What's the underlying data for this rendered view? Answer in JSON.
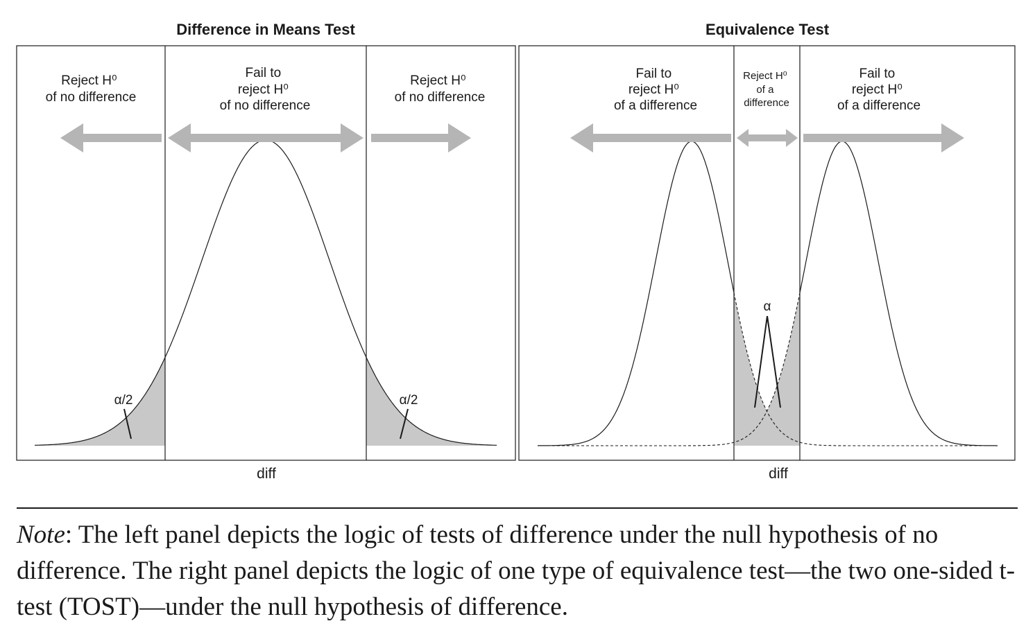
{
  "left_panel": {
    "title": "Difference in Means Test",
    "regions": [
      {
        "lines": [
          "Reject H⁰",
          "of no difference"
        ]
      },
      {
        "lines": [
          "Fail to",
          "reject H⁰",
          "of no difference"
        ]
      },
      {
        "lines": [
          "Reject H⁰",
          "of no difference"
        ]
      }
    ],
    "tail_labels": [
      "α/2",
      "α/2"
    ],
    "xlabel": "diff"
  },
  "right_panel": {
    "title": "Equivalence Test",
    "regions": [
      {
        "lines": [
          "Fail to",
          "reject H⁰",
          "of a difference"
        ]
      },
      {
        "lines": [
          "Reject H⁰",
          "of a",
          "difference"
        ]
      },
      {
        "lines": [
          "Fail to",
          "reject H⁰",
          "of a difference"
        ]
      }
    ],
    "alpha_label": "α",
    "xlabel": "diff"
  },
  "note": {
    "prefix": "Note",
    "text": ": The left panel depicts the logic of tests of difference under the null hypothesis of no difference. The right panel depicts the logic of one type of equivalence test—the two one-sided t-test (TOST)—under the null hypothesis of difference."
  },
  "colors": {
    "arrow": "#b5b5b5",
    "shade": "#c8c8c9",
    "line": "#1a1a1a"
  }
}
